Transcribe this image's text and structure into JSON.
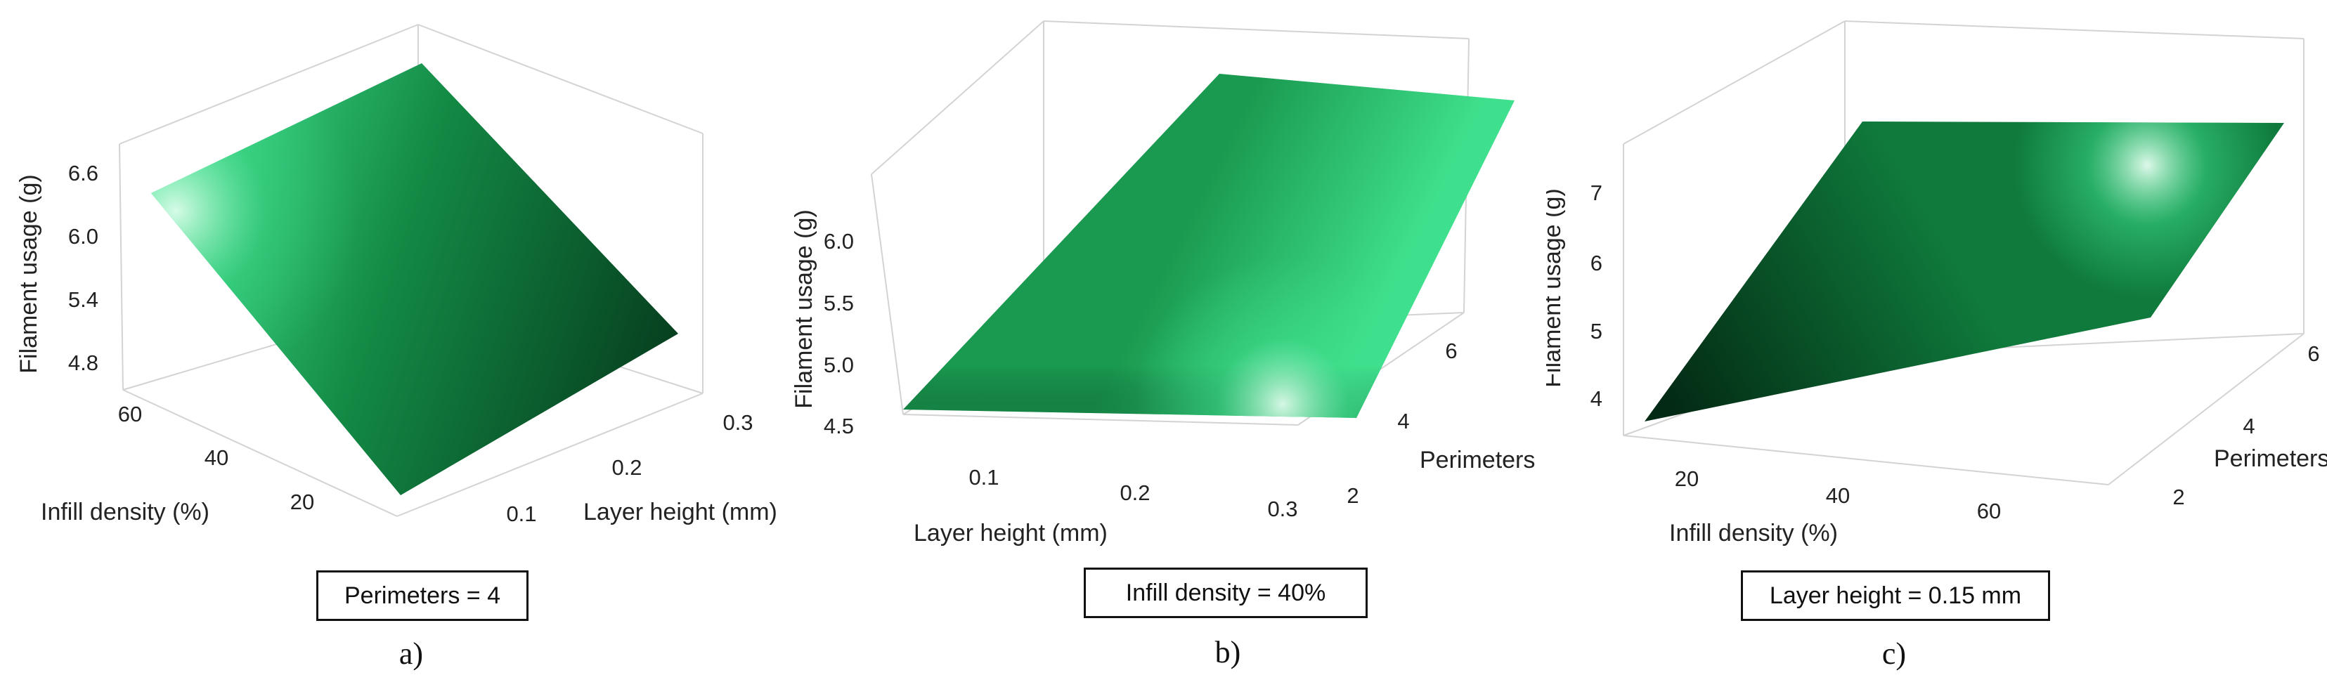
{
  "chart_data": [
    {
      "type": "surface",
      "caption": "a)",
      "fixed_condition": "Perimeters = 4",
      "xlabel": "Infill density (%)",
      "ylabel": "Layer height (mm)",
      "zlabel": "Filament usage (g)",
      "x_ticks": [
        "20",
        "40",
        "60"
      ],
      "y_ticks": [
        "0.1",
        "0.2",
        "0.3"
      ],
      "z_ticks": [
        "4.8",
        "5.4",
        "6.0",
        "6.6"
      ],
      "xlim": [
        10,
        70
      ],
      "ylim": [
        0.05,
        0.3
      ],
      "zlim": [
        4.6,
        6.8
      ],
      "corners": [
        {
          "infill_density": 10,
          "layer_height": 0.05,
          "filament_usage": 6.3
        },
        {
          "infill_density": 10,
          "layer_height": 0.3,
          "filament_usage": 4.9
        },
        {
          "infill_density": 70,
          "layer_height": 0.3,
          "filament_usage": 5.5
        },
        {
          "infill_density": 70,
          "layer_height": 0.05,
          "filament_usage": 6.8
        }
      ],
      "colors": {
        "dark": "#063d1e",
        "mid": "#138a45",
        "light": "#41e28f",
        "highlight": "#e8fff2"
      }
    },
    {
      "type": "surface",
      "caption": "b)",
      "fixed_condition": "Infill density = 40%",
      "xlabel": "Layer height (mm)",
      "ylabel": "Perimeters",
      "zlabel": "Filament usage (g)",
      "x_ticks": [
        "0.1",
        "0.2",
        "0.3"
      ],
      "y_ticks": [
        "2",
        "4",
        "6"
      ],
      "z_ticks": [
        "4.5",
        "5.0",
        "5.5",
        "6.0"
      ],
      "xlim": [
        0.05,
        0.3
      ],
      "ylim": [
        1.5,
        6.5
      ],
      "zlim": [
        4.4,
        6.5
      ],
      "corners": [
        {
          "layer_height": 0.05,
          "perimeters": 1.5,
          "filament_usage": 4.5
        },
        {
          "layer_height": 0.3,
          "perimeters": 1.5,
          "filament_usage": 4.6
        },
        {
          "layer_height": 0.3,
          "perimeters": 6.5,
          "filament_usage": 6.3
        },
        {
          "layer_height": 0.05,
          "perimeters": 6.5,
          "filament_usage": 6.4
        }
      ],
      "colors": {
        "dark": "#0b5a2c",
        "mid": "#1a9a50",
        "light": "#3fe08d",
        "highlight": "#e8fff2"
      }
    },
    {
      "type": "surface",
      "caption": "c)",
      "fixed_condition": "Layer height = 0.15 mm",
      "xlabel": "Infill density (%)",
      "ylabel": "Perimeters",
      "zlabel": "Filament usage (g)",
      "x_ticks": [
        "20",
        "40",
        "60"
      ],
      "y_ticks": [
        "2",
        "4",
        "6"
      ],
      "z_ticks": [
        "4",
        "5",
        "6",
        "7"
      ],
      "xlim": [
        10,
        70
      ],
      "ylim": [
        1.5,
        6.5
      ],
      "zlim": [
        3.5,
        7.5
      ],
      "corners": [
        {
          "infill_density": 10,
          "perimeters": 1.5,
          "filament_usage": 3.6
        },
        {
          "infill_density": 70,
          "perimeters": 1.5,
          "filament_usage": 5.0
        },
        {
          "infill_density": 70,
          "perimeters": 6.5,
          "filament_usage": 7.1
        },
        {
          "infill_density": 10,
          "perimeters": 6.5,
          "filament_usage": 6.9
        }
      ],
      "colors": {
        "dark": "#032a14",
        "mid": "#0f7a3b",
        "light": "#3fe08d",
        "highlight": "#e8fff2"
      }
    }
  ]
}
